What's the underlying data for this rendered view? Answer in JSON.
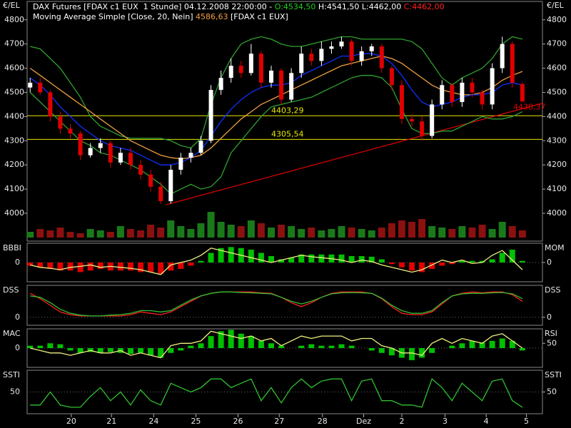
{
  "header": {
    "line1": [
      {
        "text": "DAX Futures [FDAX c1 EUX  1 Stunde] 04.12.2008 22:00:00 - ",
        "color": "#ffffff"
      },
      {
        "text": "O:4534,50",
        "color": "#20d020"
      },
      {
        "text": " H:4541,50 L:4462,00 ",
        "color": "#ffffff"
      },
      {
        "text": "C:4462,00",
        "color": "#ff2020"
      }
    ],
    "line2": [
      {
        "text": "Moving Average Simple [Close, 20, Nein] ",
        "color": "#ffffff"
      },
      {
        "text": "4586,63",
        "color": "#f0a040"
      },
      {
        "text": " [FDAX c1 EUX]",
        "color": "#ffffff"
      }
    ]
  },
  "chart_data": [
    {
      "type": "candlestick",
      "unit_label": "€/EL",
      "ylim": [
        3885,
        4876
      ],
      "xlim": [
        -0.3,
        51
      ],
      "yticks": [
        4000,
        4100,
        4200,
        4300,
        4400,
        4500,
        4600,
        4700,
        4800
      ],
      "up_color": "#ffffff",
      "down_color": "#e00000",
      "open": [
        4520,
        4540,
        4500,
        4400,
        4350,
        4330,
        4240,
        4270,
        4290,
        4210,
        4250,
        4200,
        4160,
        4110,
        4050,
        4180,
        4230,
        4250,
        4300,
        4510,
        4560,
        4610,
        4580,
        4660,
        4540,
        4590,
        4470,
        4580,
        4660,
        4630,
        4680,
        4690,
        4710,
        4630,
        4670,
        4690,
        4600,
        4530,
        4390,
        4380,
        4320,
        4450,
        4530,
        4460,
        4540,
        4500,
        4450,
        4600,
        4700,
        4534.5
      ],
      "high": [
        4560,
        4560,
        4510,
        4420,
        4370,
        4340,
        4290,
        4310,
        4300,
        4270,
        4270,
        4220,
        4180,
        4130,
        4200,
        4250,
        4270,
        4320,
        4530,
        4590,
        4640,
        4630,
        4700,
        4670,
        4610,
        4600,
        4600,
        4690,
        4680,
        4710,
        4710,
        4730,
        4720,
        4690,
        4700,
        4700,
        4610,
        4550,
        4410,
        4400,
        4470,
        4550,
        4540,
        4560,
        4560,
        4510,
        4620,
        4730,
        4710,
        4541.5
      ],
      "low": [
        4500,
        4490,
        4380,
        4330,
        4310,
        4220,
        4230,
        4250,
        4190,
        4200,
        4180,
        4140,
        4090,
        4040,
        4040,
        4160,
        4210,
        4240,
        4290,
        4490,
        4540,
        4560,
        4570,
        4520,
        4520,
        4450,
        4460,
        4560,
        4610,
        4610,
        4660,
        4680,
        4610,
        4610,
        4650,
        4580,
        4510,
        4370,
        4360,
        4300,
        4310,
        4430,
        4440,
        4440,
        4480,
        4430,
        4430,
        4580,
        4520,
        4462
      ],
      "close": [
        4540,
        4500,
        4400,
        4350,
        4330,
        4240,
        4270,
        4290,
        4210,
        4250,
        4200,
        4160,
        4110,
        4050,
        4180,
        4230,
        4250,
        4300,
        4510,
        4560,
        4610,
        4580,
        4660,
        4540,
        4590,
        4470,
        4580,
        4660,
        4630,
        4680,
        4690,
        4710,
        4630,
        4670,
        4690,
        4600,
        4530,
        4390,
        4380,
        4320,
        4450,
        4530,
        4460,
        4540,
        4500,
        4450,
        4600,
        4700,
        4540,
        4462
      ],
      "series": [
        {
          "color": "#30a030",
          "values": [
            4690,
            4680,
            4640,
            4600,
            4540,
            4480,
            4400,
            4360,
            4340,
            4320,
            4310,
            4310,
            4310,
            4310,
            4300,
            4280,
            4270,
            4310,
            4450,
            4560,
            4640,
            4700,
            4720,
            4730,
            4720,
            4700,
            4690,
            4690,
            4700,
            4710,
            4720,
            4730,
            4730,
            4720,
            4720,
            4720,
            4720,
            4720,
            4710,
            4680,
            4620,
            4560,
            4530,
            4560,
            4580,
            4600,
            4640,
            4700,
            4730,
            4720
          ]
        },
        {
          "color": "#30a030",
          "values": [
            4500,
            4460,
            4420,
            4380,
            4340,
            4300,
            4280,
            4250,
            4240,
            4220,
            4200,
            4180,
            4150,
            4120,
            4080,
            4100,
            4120,
            4100,
            4110,
            4150,
            4250,
            4300,
            4350,
            4400,
            4440,
            4450,
            4460,
            4470,
            4480,
            4500,
            4520,
            4540,
            4560,
            4570,
            4570,
            4560,
            4520,
            4430,
            4350,
            4330,
            4330,
            4340,
            4340,
            4360,
            4380,
            4400,
            4390,
            4390,
            4400,
            4420
          ]
        },
        {
          "color": "#f0a040",
          "values": [
            4600,
            4570,
            4540,
            4510,
            4480,
            4450,
            4420,
            4390,
            4360,
            4330,
            4300,
            4280,
            4260,
            4240,
            4230,
            4225,
            4230,
            4240,
            4270,
            4310,
            4350,
            4390,
            4420,
            4450,
            4470,
            4490,
            4510,
            4530,
            4550,
            4570,
            4590,
            4610,
            4620,
            4630,
            4640,
            4650,
            4640,
            4620,
            4590,
            4560,
            4530,
            4510,
            4500,
            4490,
            4490,
            4500,
            4520,
            4550,
            4570,
            4586.63
          ]
        },
        {
          "color": "#1030ff",
          "values": [
            4560,
            4530,
            4490,
            4440,
            4400,
            4360,
            4330,
            4300,
            4280,
            4270,
            4260,
            4240,
            4220,
            4200,
            4200,
            4210,
            4230,
            4260,
            4320,
            4380,
            4430,
            4470,
            4500,
            4520,
            4530,
            4530,
            4540,
            4570,
            4590,
            4610,
            4630,
            4650,
            4650,
            4660,
            4660,
            4650,
            4620,
            4570,
            4510,
            4460,
            4440,
            4450,
            4460,
            4480,
            4490,
            4490,
            4500,
            4530,
            4540,
            4530
          ]
        }
      ],
      "volume": [
        20,
        30,
        25,
        35,
        20,
        15,
        30,
        25,
        20,
        40,
        30,
        25,
        45,
        35,
        60,
        40,
        30,
        50,
        90,
        55,
        45,
        40,
        60,
        50,
        35,
        45,
        40,
        30,
        35,
        25,
        30,
        40,
        35,
        30,
        25,
        35,
        50,
        60,
        55,
        65,
        40,
        35,
        30,
        40,
        35,
        45,
        30,
        55,
        40,
        25
      ],
      "vlim": [
        0,
        100
      ],
      "volume_up_color": "#1a7a1a",
      "volume_down_color": "#8b1010",
      "hlines": [
        {
          "value": 4403.29,
          "label": "4403,29"
        },
        {
          "value": 4305.54,
          "label": "4305,54"
        }
      ],
      "hline_color": "#e8e800",
      "trendline": {
        "x": [
          13.5,
          51
        ],
        "values": [
          4035,
          4455
        ],
        "color": "#e00000",
        "tag": {
          "value": 4438.37,
          "label": "4438,37"
        }
      }
    },
    {
      "type": "indicator",
      "left_label": "BBBI",
      "right_label": "MOM",
      "ylim": [
        -60,
        60
      ],
      "yticks": [
        0
      ],
      "y2lim": [
        -40,
        40
      ],
      "y2ticks": [
        0
      ],
      "series": [
        {
          "style": "bar",
          "color": "#00c000",
          "neg_color": "#e00000",
          "values": [
            -10,
            -15,
            -20,
            -25,
            -25,
            -30,
            -25,
            -20,
            -25,
            -25,
            -25,
            -30,
            -30,
            -35,
            -25,
            -20,
            -10,
            5,
            30,
            45,
            48,
            45,
            40,
            30,
            20,
            10,
            15,
            25,
            25,
            25,
            25,
            25,
            20,
            20,
            18,
            10,
            -5,
            -15,
            -25,
            -30,
            -20,
            -10,
            -5,
            5,
            5,
            5,
            10,
            30,
            40,
            5
          ]
        },
        {
          "style": "line",
          "axis": "y2",
          "color": "#f0f080",
          "values": [
            -5,
            -10,
            -12,
            -15,
            -10,
            -8,
            -5,
            -10,
            -8,
            -10,
            -12,
            -15,
            -20,
            -25,
            -5,
            0,
            5,
            15,
            30,
            25,
            20,
            15,
            10,
            5,
            0,
            5,
            10,
            15,
            12,
            10,
            8,
            5,
            0,
            5,
            2,
            -5,
            -10,
            -15,
            -20,
            -15,
            -5,
            5,
            0,
            5,
            -2,
            0,
            15,
            25,
            5,
            -15
          ]
        }
      ]
    },
    {
      "type": "indicator",
      "left_label": "DSS",
      "right_label": "DSS",
      "ylim": [
        -30,
        120
      ],
      "yticks": [
        0
      ],
      "y2lim": [
        -30,
        120
      ],
      "y2ticks": [
        0
      ],
      "series": [
        {
          "style": "line",
          "color": "#ff2020",
          "values": [
            90,
            70,
            45,
            20,
            10,
            5,
            5,
            5,
            5,
            5,
            10,
            20,
            15,
            10,
            20,
            40,
            60,
            80,
            90,
            95,
            95,
            95,
            95,
            92,
            90,
            75,
            55,
            40,
            55,
            75,
            90,
            95,
            95,
            95,
            90,
            70,
            40,
            15,
            10,
            10,
            20,
            50,
            80,
            90,
            95,
            92,
            95,
            95,
            85,
            60
          ]
        },
        {
          "style": "line",
          "color": "#30c030",
          "values": [
            80,
            75,
            55,
            30,
            15,
            8,
            5,
            5,
            8,
            10,
            15,
            25,
            25,
            20,
            25,
            45,
            65,
            80,
            90,
            95,
            95,
            93,
            92,
            90,
            88,
            75,
            60,
            50,
            60,
            75,
            88,
            92,
            93,
            92,
            90,
            72,
            45,
            25,
            15,
            15,
            25,
            55,
            80,
            88,
            90,
            90,
            92,
            93,
            88,
            70
          ]
        }
      ]
    },
    {
      "type": "indicator",
      "left_label": "MAC",
      "right_label": "RSI",
      "ylim": [
        -40,
        40
      ],
      "yticks": [
        0
      ],
      "y2lim": [
        0,
        80
      ],
      "y2ticks": [
        50
      ],
      "series": [
        {
          "style": "bar",
          "color": "#00c000",
          "neg_color": "#00c000",
          "values": [
            5,
            5,
            10,
            8,
            -5,
            -10,
            -8,
            -10,
            -8,
            -10,
            -12,
            -10,
            -15,
            -20,
            -10,
            -5,
            5,
            10,
            25,
            35,
            38,
            30,
            25,
            15,
            10,
            5,
            0,
            5,
            8,
            5,
            5,
            8,
            5,
            0,
            -5,
            -10,
            -15,
            -20,
            -25,
            -20,
            -10,
            0,
            5,
            10,
            15,
            12,
            15,
            20,
            15,
            -5
          ]
        },
        {
          "style": "line",
          "axis": "y2",
          "color": "#f0f080",
          "values": [
            40,
            35,
            30,
            30,
            25,
            30,
            35,
            30,
            30,
            35,
            25,
            30,
            25,
            20,
            45,
            50,
            50,
            55,
            75,
            70,
            65,
            60,
            65,
            55,
            60,
            45,
            55,
            65,
            60,
            65,
            65,
            65,
            55,
            60,
            60,
            45,
            40,
            30,
            30,
            25,
            50,
            60,
            50,
            60,
            55,
            50,
            65,
            70,
            55,
            40
          ]
        }
      ]
    },
    {
      "type": "indicator",
      "left_label": "SSTI",
      "right_label": "SSTI",
      "ylim": [
        0,
        100
      ],
      "yticks": [
        50
      ],
      "y2lim": [
        0,
        100
      ],
      "y2ticks": [
        50
      ],
      "xticks": [
        {
          "value": 4.1,
          "label": "20"
        },
        {
          "value": 8.1,
          "label": "21"
        },
        {
          "value": 12.3,
          "label": "24"
        },
        {
          "value": 16.5,
          "label": "25"
        },
        {
          "value": 20.7,
          "label": "26"
        },
        {
          "value": 24.8,
          "label": "27"
        },
        {
          "value": 29.1,
          "label": "28"
        },
        {
          "value": 33.2,
          "label": "Dez"
        },
        {
          "value": 37,
          "label": "2"
        },
        {
          "value": 41.3,
          "label": "3"
        },
        {
          "value": 45.4,
          "label": "4"
        },
        {
          "value": 49.4,
          "label": "5"
        }
      ],
      "series": [
        {
          "style": "line",
          "color": "#30c030",
          "values": [
            20,
            20,
            50,
            20,
            15,
            15,
            40,
            60,
            30,
            50,
            20,
            55,
            30,
            20,
            70,
            60,
            50,
            60,
            80,
            80,
            60,
            70,
            80,
            30,
            60,
            25,
            60,
            80,
            60,
            75,
            80,
            80,
            30,
            75,
            80,
            30,
            30,
            20,
            20,
            15,
            80,
            60,
            30,
            70,
            50,
            30,
            75,
            80,
            30,
            15
          ]
        }
      ]
    }
  ]
}
